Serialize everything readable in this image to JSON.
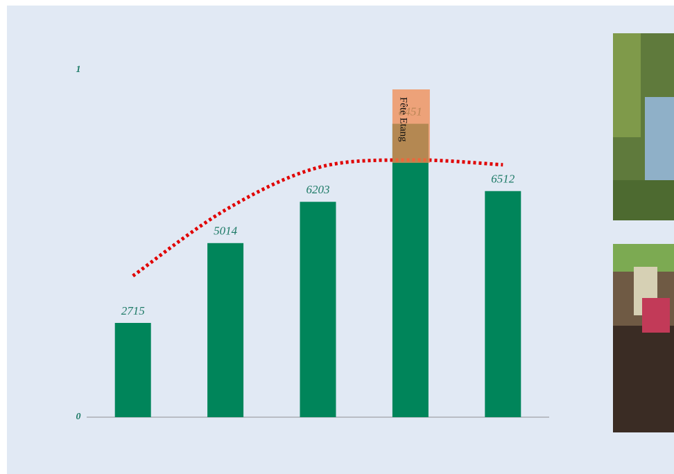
{
  "chart_data": {
    "type": "bar",
    "categories": [
      null,
      null,
      null,
      null,
      null
    ],
    "series": [
      {
        "type": "bar",
        "color": "#00855a",
        "values": [
          2715,
          5014,
          6203,
          8451,
          6512
        ]
      },
      {
        "type": "line",
        "color": "#e00000",
        "values": [
          4070,
          5970,
          7190,
          7410,
          7270
        ]
      }
    ],
    "ylim": [
      0,
      10000
    ],
    "yticks": [
      0,
      {
        "value": 10000,
        "label": "1"
      }
    ],
    "annotation": "Fête Etang"
  }
}
